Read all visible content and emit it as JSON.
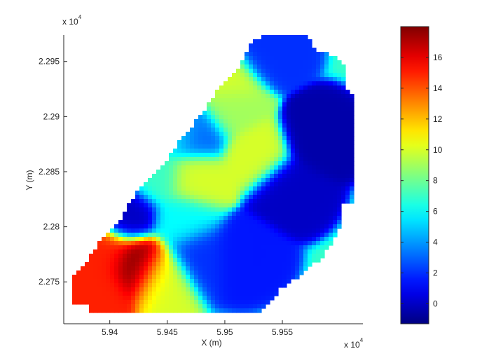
{
  "chart_data": {
    "type": "heatmap",
    "title": "",
    "xlabel": "X (m)",
    "ylabel": "Y (m)",
    "x_multiplier": "x 10",
    "x_multiplier_exp": "4",
    "y_multiplier": "x 10",
    "y_multiplier_exp": "4",
    "xlim": [
      5.936,
      5.962
    ],
    "ylim": [
      2.2712,
      2.2974
    ],
    "x_ticks": [
      5.94,
      5.945,
      5.95,
      5.955
    ],
    "x_tick_labels": [
      "5.94",
      "5.945",
      "5.95",
      "5.955"
    ],
    "y_ticks": [
      2.275,
      2.28,
      2.285,
      2.29,
      2.295
    ],
    "y_tick_labels": [
      "2.275",
      "2.28",
      "2.285",
      "2.29",
      "2.295"
    ],
    "colormap": "jet",
    "colorbar": {
      "clim": [
        -1.3,
        18
      ],
      "ticks": [
        0,
        2,
        4,
        6,
        8,
        10,
        12,
        14,
        16
      ],
      "tick_labels": [
        "0",
        "2",
        "4",
        "6",
        "8",
        "10",
        "12",
        "14",
        "16"
      ]
    },
    "hotspots": [
      {
        "x": 5.9425,
        "y": 2.2765,
        "value": 18
      },
      {
        "x": 5.939,
        "y": 2.2745,
        "value": 15
      },
      {
        "x": 5.9395,
        "y": 2.2775,
        "value": 15
      },
      {
        "x": 5.9445,
        "y": 2.2755,
        "value": 10
      },
      {
        "x": 5.9475,
        "y": 2.2843,
        "value": 10
      },
      {
        "x": 5.9528,
        "y": 2.2865,
        "value": 10
      },
      {
        "x": 5.9505,
        "y": 2.2908,
        "value": 9
      },
      {
        "x": 5.9502,
        "y": 2.2935,
        "value": 10
      },
      {
        "x": 5.947,
        "y": 2.2955,
        "value": 8
      },
      {
        "x": 5.9455,
        "y": 2.2888,
        "value": 6
      },
      {
        "x": 5.944,
        "y": 2.2845,
        "value": 7
      },
      {
        "x": 5.9465,
        "y": 2.2805,
        "value": 6
      },
      {
        "x": 5.9475,
        "y": 2.2885,
        "value": 3
      },
      {
        "x": 5.9415,
        "y": 2.2812,
        "value": 0
      },
      {
        "x": 5.9555,
        "y": 2.2835,
        "value": 0
      },
      {
        "x": 5.958,
        "y": 2.288,
        "value": -0.5
      },
      {
        "x": 5.9515,
        "y": 2.2775,
        "value": 1.5
      },
      {
        "x": 5.9535,
        "y": 2.296,
        "value": 2
      },
      {
        "x": 5.9478,
        "y": 2.2775,
        "value": 2
      }
    ]
  }
}
